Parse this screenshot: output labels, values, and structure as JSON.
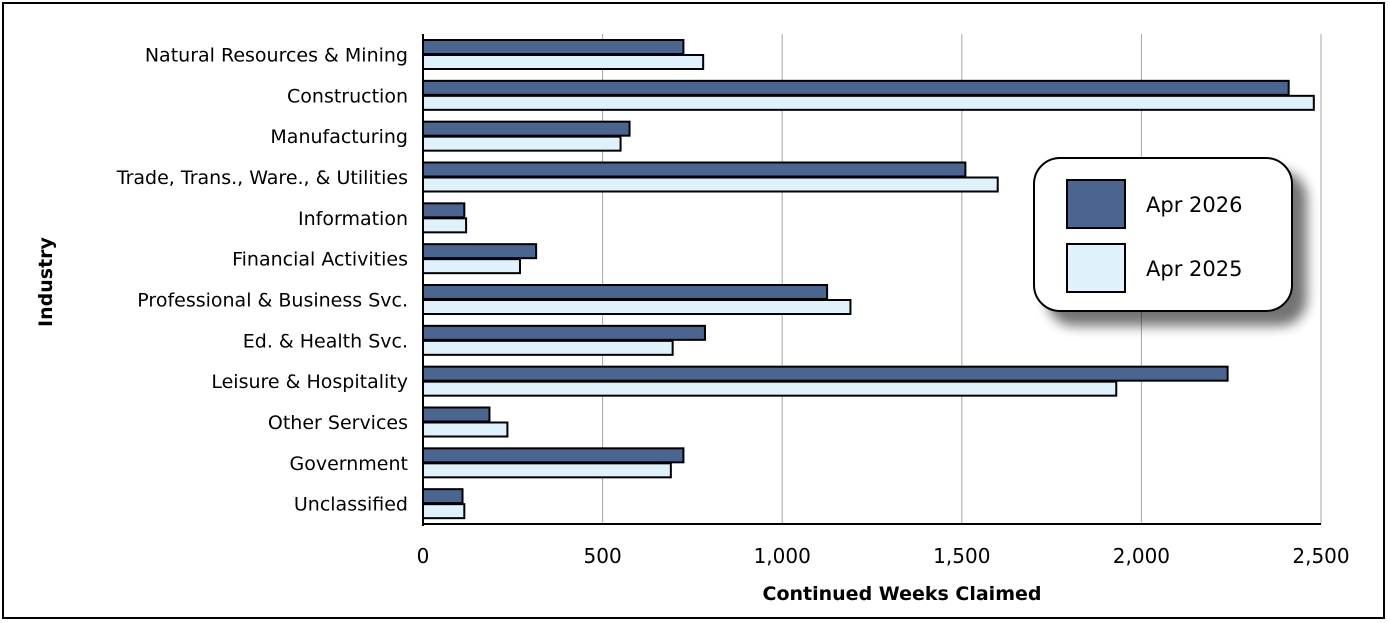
{
  "chart_data": {
    "type": "bar",
    "orientation": "horizontal",
    "title": "",
    "xlabel": "Continued Weeks Claimed",
    "ylabel": "Industry",
    "xlim": [
      0,
      2500
    ],
    "xticks": [
      0,
      500,
      1000,
      1500,
      2000,
      2500
    ],
    "xtick_labels": [
      "0",
      "500",
      "1,000",
      "1,500",
      "2,000",
      "2,500"
    ],
    "grid": "vertical",
    "legend_position": "right",
    "categories": [
      "Natural Resources & Mining",
      "Construction",
      "Manufacturing",
      "Trade, Trans., Ware., & Utilities",
      "Information",
      "Financial Activities",
      "Professional & Business Svc.",
      "Ed. & Health Svc.",
      "Leisure & Hospitality",
      "Other Services",
      "Government",
      "Unclassified"
    ],
    "series": [
      {
        "name": "Apr 2026",
        "color": "#4a6590",
        "values": [
          725,
          2410,
          575,
          1510,
          115,
          315,
          1125,
          785,
          2240,
          185,
          725,
          110
        ]
      },
      {
        "name": "Apr 2025",
        "color": "#dff2fb",
        "values": [
          780,
          2480,
          550,
          1600,
          120,
          270,
          1190,
          695,
          1930,
          235,
          690,
          115
        ]
      }
    ]
  }
}
